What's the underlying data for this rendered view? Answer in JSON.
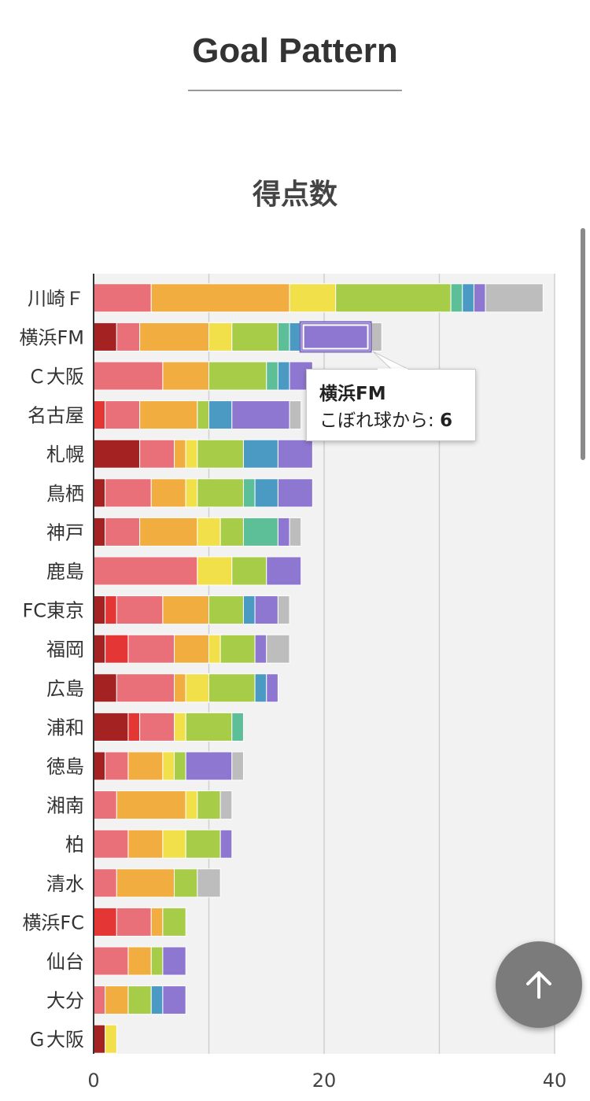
{
  "page_title": "Goal Pattern",
  "chart_title": "得点数",
  "tooltip": {
    "team": "横浜FM",
    "label": "こぼれ球から:",
    "value": "6"
  },
  "scroll_top_icon": "arrow-up-icon",
  "colors": [
    "#a52222",
    "#e53636",
    "#e96f78",
    "#f2ad40",
    "#f2e04b",
    "#a6cc48",
    "#5cbf98",
    "#4a9ac4",
    "#8e77d0",
    "#bdbdbd"
  ],
  "chart_data": {
    "type": "bar",
    "orientation": "horizontal",
    "stacked": true,
    "title": "得点数",
    "xlim": [
      0,
      40
    ],
    "xticks": [
      0,
      20,
      40
    ],
    "grid": true,
    "categories": [
      "川崎Ｆ",
      "横浜FM",
      "Ｃ大阪",
      "名古屋",
      "札幌",
      "鳥栖",
      "神戸",
      "鹿島",
      "FC東京",
      "福岡",
      "広島",
      "浦和",
      "徳島",
      "湘南",
      "柏",
      "清水",
      "横浜FC",
      "仙台",
      "大分",
      "Ｇ大阪"
    ],
    "series": [
      {
        "values": [
          0,
          2,
          0,
          0,
          4,
          1,
          1,
          0,
          1,
          1,
          2,
          3,
          1,
          0,
          0,
          0,
          0,
          0,
          0,
          1
        ]
      },
      {
        "values": [
          0,
          0,
          0,
          1,
          0,
          0,
          0,
          0,
          1,
          2,
          0,
          1,
          0,
          0,
          0,
          0,
          2,
          0,
          0,
          0
        ]
      },
      {
        "values": [
          5,
          2,
          6,
          3,
          3,
          4,
          3,
          9,
          4,
          4,
          5,
          3,
          2,
          2,
          3,
          2,
          3,
          3,
          1,
          0
        ]
      },
      {
        "values": [
          12,
          6,
          4,
          5,
          1,
          3,
          5,
          0,
          4,
          3,
          1,
          0,
          3,
          6,
          3,
          5,
          1,
          2,
          2,
          0
        ]
      },
      {
        "values": [
          4,
          2,
          0,
          0,
          1,
          1,
          2,
          3,
          0,
          1,
          2,
          1,
          1,
          1,
          2,
          0,
          0,
          0,
          0,
          1
        ]
      },
      {
        "values": [
          10,
          4,
          5,
          1,
          4,
          4,
          2,
          3,
          3,
          3,
          4,
          4,
          1,
          2,
          3,
          2,
          2,
          1,
          2,
          0
        ]
      },
      {
        "values": [
          1,
          1,
          1,
          0,
          0,
          1,
          3,
          0,
          0,
          0,
          0,
          1,
          0,
          0,
          0,
          0,
          0,
          0,
          0,
          0
        ]
      },
      {
        "values": [
          1,
          1,
          1,
          2,
          3,
          2,
          0,
          0,
          1,
          0,
          1,
          0,
          0,
          0,
          0,
          0,
          0,
          0,
          1,
          0
        ]
      },
      {
        "values": [
          1,
          6,
          2,
          5,
          3,
          3,
          1,
          3,
          2,
          1,
          1,
          0,
          4,
          0,
          1,
          0,
          0,
          2,
          2,
          0
        ]
      },
      {
        "values": [
          5,
          1,
          0,
          1,
          0,
          0,
          1,
          0,
          1,
          2,
          0,
          0,
          1,
          1,
          0,
          2,
          0,
          0,
          0,
          0
        ]
      }
    ]
  }
}
